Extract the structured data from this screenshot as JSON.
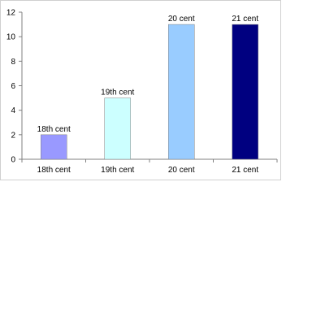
{
  "chart_data": {
    "type": "bar",
    "categories": [
      "18th cent",
      "19th cent",
      "20 cent",
      "21 cent"
    ],
    "values": [
      2,
      5,
      11,
      11
    ],
    "data_labels": [
      "18th cent",
      "19th cent",
      "20 cent",
      "21 cent"
    ],
    "bar_colors": [
      "#9999ff",
      "#ccffff",
      "#99ccff",
      "#000080"
    ],
    "title": "",
    "xlabel": "",
    "ylabel": "",
    "ylim": [
      0,
      12
    ],
    "yticks": [
      0,
      2,
      4,
      6,
      8,
      10,
      12
    ],
    "grid": false,
    "legend": "none"
  }
}
